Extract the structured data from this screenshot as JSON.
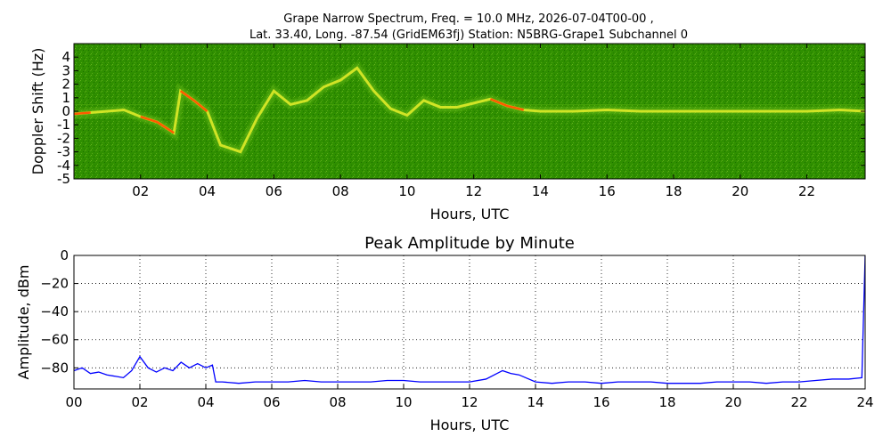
{
  "figure": {
    "title_line1": "Grape Narrow Spectrum, Freq. = 10.0 MHz, 2026-07-04T00-00 ,",
    "title_line2": "Lat.  33.40, Long. -87.54 (GridEM63fj) Station: N5BRG-Grape1 Subchannel 0"
  },
  "chart_data": [
    {
      "type": "heatmap",
      "xlabel": "Hours, UTC",
      "ylabel": "Doppler Shift (Hz)",
      "xlim": [
        0,
        23.75
      ],
      "ylim": [
        -5,
        5
      ],
      "x_ticks": [
        2,
        4,
        6,
        8,
        10,
        12,
        14,
        16,
        18,
        20,
        22
      ],
      "x_tick_labels": [
        "02",
        "04",
        "06",
        "08",
        "10",
        "12",
        "14",
        "16",
        "18",
        "20",
        "22"
      ],
      "y_ticks": [
        -5,
        -4,
        -3,
        -2,
        -1,
        0,
        1,
        2,
        3,
        4
      ],
      "y_tick_labels": [
        "-5",
        "-4",
        "-3",
        "-2",
        "-1",
        "0",
        "1",
        "2",
        "3",
        "4"
      ],
      "colors": {
        "background": "#2a8a00",
        "weak": "#6fbf1a",
        "medium": "#e8ef2a",
        "strong": "#ff5a00",
        "peak": "#e00000"
      },
      "grid": false,
      "trace_hz": {
        "hours": [
          0,
          0.5,
          1,
          1.5,
          2,
          2.5,
          3,
          3.2,
          3.6,
          4,
          4.4,
          5,
          5.5,
          6,
          6.5,
          7,
          7.5,
          8,
          8.5,
          9,
          9.5,
          10,
          10.5,
          11,
          11.5,
          12,
          12.5,
          13,
          13.5,
          14,
          15,
          16,
          17,
          18,
          19,
          20,
          21,
          22,
          23,
          23.75
        ],
        "shift": [
          -0.2,
          -0.1,
          0.0,
          0.1,
          -0.4,
          -0.8,
          -1.6,
          1.5,
          0.8,
          0.0,
          -2.5,
          -3.0,
          -0.5,
          1.5,
          0.5,
          0.8,
          1.8,
          2.3,
          3.2,
          1.5,
          0.2,
          -0.3,
          0.8,
          0.3,
          0.3,
          0.6,
          0.9,
          0.4,
          0.1,
          0.0,
          0.0,
          0.1,
          0.0,
          0.0,
          0.0,
          0.0,
          0.0,
          0.0,
          0.1,
          0.0
        ]
      }
    },
    {
      "type": "line",
      "title": "Peak Amplitude by Minute",
      "xlabel": "Hours, UTC",
      "ylabel": "Amplitude, dBm",
      "xlim": [
        0,
        24
      ],
      "ylim": [
        -95,
        0
      ],
      "x_ticks": [
        0,
        2,
        4,
        6,
        8,
        10,
        12,
        14,
        16,
        18,
        20,
        22,
        24
      ],
      "x_tick_labels": [
        "00",
        "02",
        "04",
        "06",
        "08",
        "10",
        "12",
        "14",
        "16",
        "18",
        "20",
        "22",
        "24"
      ],
      "y_ticks": [
        0,
        -20,
        -40,
        -60,
        -80
      ],
      "y_tick_labels": [
        "0",
        "−20",
        "−40",
        "−60",
        "−80"
      ],
      "grid": true,
      "color": "#0000ff",
      "series": [
        {
          "x": [
            0,
            0.25,
            0.5,
            0.75,
            1,
            1.25,
            1.5,
            1.75,
            2,
            2.25,
            2.5,
            2.75,
            3,
            3.25,
            3.5,
            3.75,
            4,
            4.2,
            4.3,
            4.5,
            5,
            5.5,
            6,
            6.5,
            7,
            7.5,
            8,
            8.5,
            9,
            9.5,
            10,
            10.5,
            11,
            11.5,
            12,
            12.5,
            12.75,
            13,
            13.25,
            13.5,
            14,
            14.5,
            15,
            15.5,
            16,
            16.5,
            17,
            17.5,
            18,
            18.5,
            19,
            19.5,
            20,
            20.5,
            21,
            21.5,
            22,
            22.5,
            23,
            23.5,
            23.9,
            24
          ],
          "y": [
            -82,
            -80,
            -84,
            -83,
            -85,
            -86,
            -87,
            -82,
            -72,
            -80,
            -83,
            -80,
            -82,
            -76,
            -80,
            -77,
            -80,
            -78,
            -90,
            -90,
            -91,
            -90,
            -90,
            -90,
            -89,
            -90,
            -90,
            -90,
            -90,
            -89,
            -89,
            -90,
            -90,
            -90,
            -90,
            -88,
            -85,
            -82,
            -84,
            -85,
            -90,
            -91,
            -90,
            -90,
            -91,
            -90,
            -90,
            -90,
            -91,
            -91,
            -91,
            -90,
            -90,
            -90,
            -91,
            -90,
            -90,
            -89,
            -88,
            -88,
            -87,
            0
          ]
        }
      ]
    }
  ]
}
